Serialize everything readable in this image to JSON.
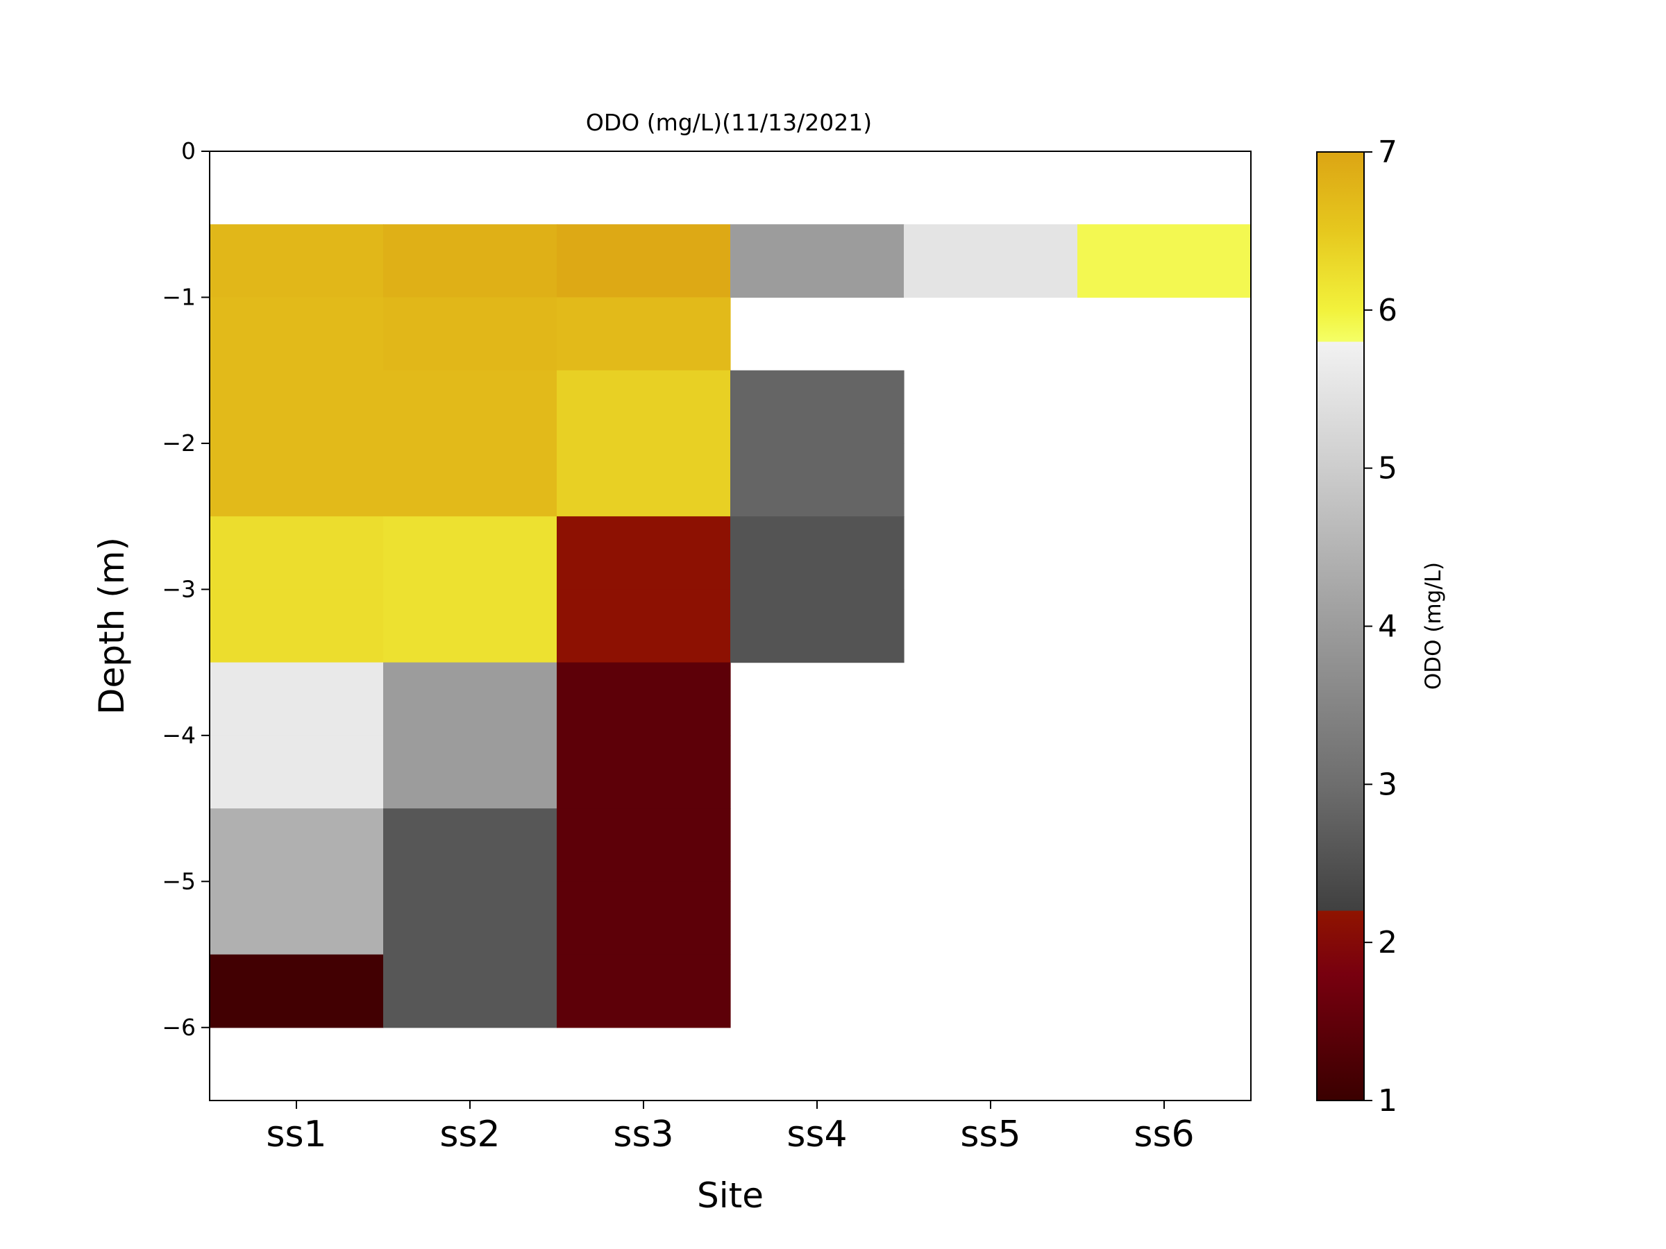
{
  "chart_data": {
    "type": "heatmap",
    "title": "ODO (mg/L)(11/13/2021)",
    "xlabel": "Site",
    "ylabel": "Depth (m)",
    "categories": [
      "ss1",
      "ss2",
      "ss3",
      "ss4",
      "ss5",
      "ss6"
    ],
    "ylim": [
      -6.5,
      0
    ],
    "yticks": [
      0,
      -1,
      -2,
      -3,
      -4,
      -5,
      -6
    ],
    "ytick_labels": [
      "0",
      "−1",
      "−2",
      "−3",
      "−4",
      "−5",
      "−6"
    ],
    "cell_height": 0.5,
    "grid": false,
    "colorbar": {
      "label": "ODO (mg/L)",
      "range": [
        1,
        7
      ],
      "ticks": [
        1,
        2,
        3,
        4,
        5,
        6,
        7
      ],
      "tick_labels": [
        "1",
        "2",
        "3",
        "4",
        "5",
        "6",
        "7"
      ],
      "stops": [
        {
          "v": 1.0,
          "c": "#3a0000"
        },
        {
          "v": 1.8,
          "c": "#78000f"
        },
        {
          "v": 2.2,
          "c": "#901400"
        },
        {
          "v": 2.2,
          "c": "#404040"
        },
        {
          "v": 3.0,
          "c": "#6e6e6e"
        },
        {
          "v": 4.0,
          "c": "#9c9c9c"
        },
        {
          "v": 5.0,
          "c": "#cdcdcd"
        },
        {
          "v": 5.8,
          "c": "#f2f2f2"
        },
        {
          "v": 5.8,
          "c": "#f4ff66"
        },
        {
          "v": 6.0,
          "c": "#f2f23c"
        },
        {
          "v": 6.5,
          "c": "#e6c81e"
        },
        {
          "v": 7.0,
          "c": "#dca514"
        }
      ]
    },
    "cells": [
      {
        "site": "ss1",
        "depth": -0.75,
        "value": 6.75
      },
      {
        "site": "ss1",
        "depth": -1.25,
        "value": 6.7
      },
      {
        "site": "ss1",
        "depth": -1.75,
        "value": 6.7
      },
      {
        "site": "ss1",
        "depth": -2.25,
        "value": 6.7
      },
      {
        "site": "ss1",
        "depth": -2.75,
        "value": 6.25
      },
      {
        "site": "ss1",
        "depth": -3.25,
        "value": 6.25
      },
      {
        "site": "ss1",
        "depth": -3.75,
        "value": 5.6
      },
      {
        "site": "ss1",
        "depth": -4.25,
        "value": 5.6
      },
      {
        "site": "ss1",
        "depth": -4.75,
        "value": 4.4
      },
      {
        "site": "ss1",
        "depth": -5.25,
        "value": 4.4
      },
      {
        "site": "ss1",
        "depth": -5.75,
        "value": 1.1
      },
      {
        "site": "ss2",
        "depth": -0.75,
        "value": 6.85
      },
      {
        "site": "ss2",
        "depth": -1.25,
        "value": 6.75
      },
      {
        "site": "ss2",
        "depth": -1.75,
        "value": 6.7
      },
      {
        "site": "ss2",
        "depth": -2.25,
        "value": 6.7
      },
      {
        "site": "ss2",
        "depth": -2.75,
        "value": 6.2
      },
      {
        "site": "ss2",
        "depth": -3.25,
        "value": 6.2
      },
      {
        "site": "ss2",
        "depth": -3.75,
        "value": 4.0
      },
      {
        "site": "ss2",
        "depth": -4.25,
        "value": 4.0
      },
      {
        "site": "ss2",
        "depth": -4.75,
        "value": 2.6
      },
      {
        "site": "ss2",
        "depth": -5.25,
        "value": 2.6
      },
      {
        "site": "ss2",
        "depth": -5.75,
        "value": 2.6
      },
      {
        "site": "ss3",
        "depth": -0.75,
        "value": 6.95
      },
      {
        "site": "ss3",
        "depth": -1.25,
        "value": 6.7
      },
      {
        "site": "ss3",
        "depth": -1.75,
        "value": 6.4
      },
      {
        "site": "ss3",
        "depth": -2.25,
        "value": 6.4
      },
      {
        "site": "ss3",
        "depth": -2.75,
        "value": 2.15
      },
      {
        "site": "ss3",
        "depth": -3.25,
        "value": 2.15
      },
      {
        "site": "ss3",
        "depth": -3.75,
        "value": 1.45
      },
      {
        "site": "ss3",
        "depth": -4.25,
        "value": 1.45
      },
      {
        "site": "ss3",
        "depth": -4.75,
        "value": 1.45
      },
      {
        "site": "ss3",
        "depth": -5.25,
        "value": 1.45
      },
      {
        "site": "ss3",
        "depth": -5.75,
        "value": 1.45
      },
      {
        "site": "ss4",
        "depth": -0.75,
        "value": 4.0
      },
      {
        "site": "ss4",
        "depth": -1.75,
        "value": 2.85
      },
      {
        "site": "ss4",
        "depth": -2.25,
        "value": 2.85
      },
      {
        "site": "ss4",
        "depth": -2.75,
        "value": 2.55
      },
      {
        "site": "ss4",
        "depth": -3.25,
        "value": 2.55
      },
      {
        "site": "ss5",
        "depth": -0.75,
        "value": 5.5
      },
      {
        "site": "ss6",
        "depth": -0.75,
        "value": 5.9
      }
    ]
  }
}
